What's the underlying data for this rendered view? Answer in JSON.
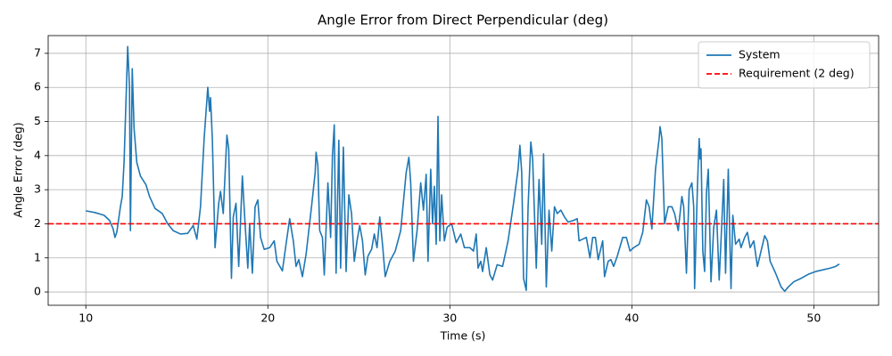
{
  "chart_data": {
    "type": "line",
    "title": "Angle Error from Direct Perpendicular (deg)",
    "xlabel": "Time (s)",
    "ylabel": "Angle Error (deg)",
    "x": [
      10.0,
      10.5,
      11.0,
      11.3,
      11.5,
      11.6,
      11.7,
      11.9,
      12.0,
      12.1,
      12.2,
      12.3,
      12.4,
      12.45,
      12.55,
      12.65,
      12.8,
      13.0,
      13.3,
      13.5,
      13.8,
      14.2,
      14.5,
      14.8,
      15.2,
      15.6,
      15.9,
      16.1,
      16.3,
      16.5,
      16.7,
      16.8,
      16.85,
      16.95,
      17.1,
      17.3,
      17.4,
      17.55,
      17.75,
      17.85,
      18.0,
      18.1,
      18.25,
      18.4,
      18.6,
      18.75,
      18.9,
      19.0,
      19.15,
      19.3,
      19.45,
      19.6,
      19.8,
      20.1,
      20.35,
      20.5,
      20.8,
      21.0,
      21.2,
      21.4,
      21.55,
      21.7,
      21.9,
      22.1,
      22.4,
      22.6,
      22.65,
      22.75,
      22.85,
      23.0,
      23.1,
      23.3,
      23.45,
      23.55,
      23.65,
      23.75,
      23.9,
      24.0,
      24.15,
      24.3,
      24.45,
      24.6,
      24.75,
      24.9,
      25.05,
      25.2,
      25.35,
      25.5,
      25.7,
      25.85,
      26.0,
      26.15,
      26.3,
      26.45,
      26.7,
      27.0,
      27.3,
      27.6,
      27.75,
      27.85,
      28.0,
      28.2,
      28.4,
      28.55,
      28.7,
      28.8,
      28.95,
      29.05,
      29.15,
      29.25,
      29.35,
      29.45,
      29.55,
      29.7,
      29.85,
      30.1,
      30.35,
      30.6,
      30.8,
      31.1,
      31.3,
      31.45,
      31.55,
      31.7,
      31.8,
      32.0,
      32.2,
      32.35,
      32.6,
      32.9,
      33.2,
      33.5,
      33.75,
      33.85,
      33.95,
      34.05,
      34.2,
      34.3,
      34.45,
      34.55,
      34.75,
      34.9,
      35.05,
      35.15,
      35.3,
      35.45,
      35.6,
      35.75,
      35.9,
      36.1,
      36.3,
      36.5,
      36.8,
      37.0,
      37.1,
      37.3,
      37.5,
      37.7,
      37.85,
      38.0,
      38.15,
      38.4,
      38.5,
      38.7,
      38.85,
      39.0,
      39.2,
      39.5,
      39.7,
      39.9,
      40.1,
      40.4,
      40.6,
      40.8,
      40.95,
      41.1,
      41.3,
      41.5,
      41.55,
      41.65,
      41.8,
      42.0,
      42.2,
      42.35,
      42.55,
      42.75,
      42.85,
      43.0,
      43.15,
      43.3,
      43.4,
      43.45,
      43.6,
      43.7,
      43.75,
      43.8,
      43.9,
      44.0,
      44.1,
      44.2,
      44.35,
      44.5,
      44.65,
      44.8,
      44.9,
      45.05,
      45.15,
      45.3,
      45.4,
      45.45,
      45.55,
      45.7,
      45.9,
      46.0,
      46.2,
      46.35,
      46.5,
      46.7,
      46.9,
      47.1,
      47.3,
      47.45,
      47.6,
      47.9,
      48.2,
      48.4,
      48.6,
      48.9,
      49.3,
      49.7,
      50.1,
      50.5,
      50.9,
      51.2,
      51.4
    ],
    "series": [
      {
        "name": "System",
        "color": "#1f77b4",
        "values": [
          2.38,
          2.33,
          2.25,
          2.1,
          1.85,
          1.6,
          1.75,
          2.5,
          2.8,
          3.8,
          5.5,
          7.2,
          6.0,
          1.8,
          6.55,
          4.8,
          3.8,
          3.4,
          3.15,
          2.8,
          2.45,
          2.3,
          2.0,
          1.8,
          1.7,
          1.72,
          1.95,
          1.55,
          2.5,
          4.5,
          6.0,
          5.3,
          5.7,
          4.5,
          1.3,
          2.6,
          2.95,
          2.3,
          4.6,
          4.2,
          0.4,
          2.2,
          2.6,
          0.75,
          3.4,
          2.0,
          0.7,
          2.0,
          0.55,
          2.5,
          2.7,
          1.6,
          1.25,
          1.3,
          1.5,
          0.9,
          0.62,
          1.4,
          2.15,
          1.5,
          0.75,
          0.95,
          0.45,
          1.1,
          2.5,
          3.5,
          4.1,
          3.7,
          1.8,
          1.6,
          0.5,
          3.2,
          1.6,
          4.0,
          4.9,
          0.55,
          4.45,
          0.7,
          4.25,
          0.6,
          2.85,
          2.3,
          0.9,
          1.5,
          1.95,
          1.5,
          0.5,
          1.05,
          1.25,
          1.7,
          1.3,
          2.2,
          1.4,
          0.45,
          0.9,
          1.2,
          1.8,
          3.5,
          3.95,
          3.2,
          0.9,
          1.8,
          3.2,
          2.4,
          3.45,
          0.9,
          3.6,
          2.0,
          3.1,
          1.4,
          5.15,
          1.5,
          2.85,
          1.5,
          1.9,
          2.0,
          1.45,
          1.7,
          1.3,
          1.3,
          1.2,
          1.7,
          0.7,
          0.9,
          0.6,
          1.3,
          0.5,
          0.35,
          0.8,
          0.75,
          1.5,
          2.6,
          3.6,
          4.3,
          3.5,
          0.4,
          0.05,
          2.5,
          4.4,
          3.9,
          0.7,
          3.3,
          1.4,
          4.05,
          0.15,
          2.4,
          1.2,
          2.5,
          2.3,
          2.4,
          2.2,
          2.05,
          2.1,
          2.15,
          1.5,
          1.55,
          1.6,
          1.0,
          1.6,
          1.6,
          0.95,
          1.5,
          0.45,
          0.9,
          0.95,
          0.75,
          1.05,
          1.6,
          1.6,
          1.2,
          1.3,
          1.4,
          1.75,
          2.7,
          2.5,
          1.85,
          3.6,
          4.5,
          4.85,
          4.5,
          2.0,
          2.5,
          2.5,
          2.3,
          1.8,
          2.8,
          2.5,
          0.55,
          3.0,
          3.2,
          2.5,
          0.1,
          3.0,
          4.5,
          3.9,
          4.2,
          1.2,
          0.6,
          2.9,
          3.6,
          0.3,
          1.9,
          2.4,
          0.35,
          1.5,
          3.3,
          0.55,
          3.6,
          1.2,
          0.1,
          2.25,
          1.4,
          1.55,
          1.3,
          1.6,
          1.75,
          1.3,
          1.5,
          0.75,
          1.2,
          1.65,
          1.5,
          0.9,
          0.55,
          0.15,
          0.02,
          0.15,
          0.3,
          0.4,
          0.52,
          0.6,
          0.65,
          0.7,
          0.75,
          0.82
        ]
      }
    ],
    "reference_lines": [
      {
        "name": "Requirement (2 deg)",
        "value": 2,
        "color": "#ff0000",
        "style": "dashed"
      }
    ],
    "xlim": [
      7.93,
      53.56
    ],
    "xticks": [
      10,
      20,
      30,
      40,
      50
    ],
    "ylim": [
      -0.39,
      7.52
    ],
    "yticks": [
      0,
      1,
      2,
      3,
      4,
      5,
      6,
      7
    ],
    "grid": true,
    "legend": "upper right"
  }
}
